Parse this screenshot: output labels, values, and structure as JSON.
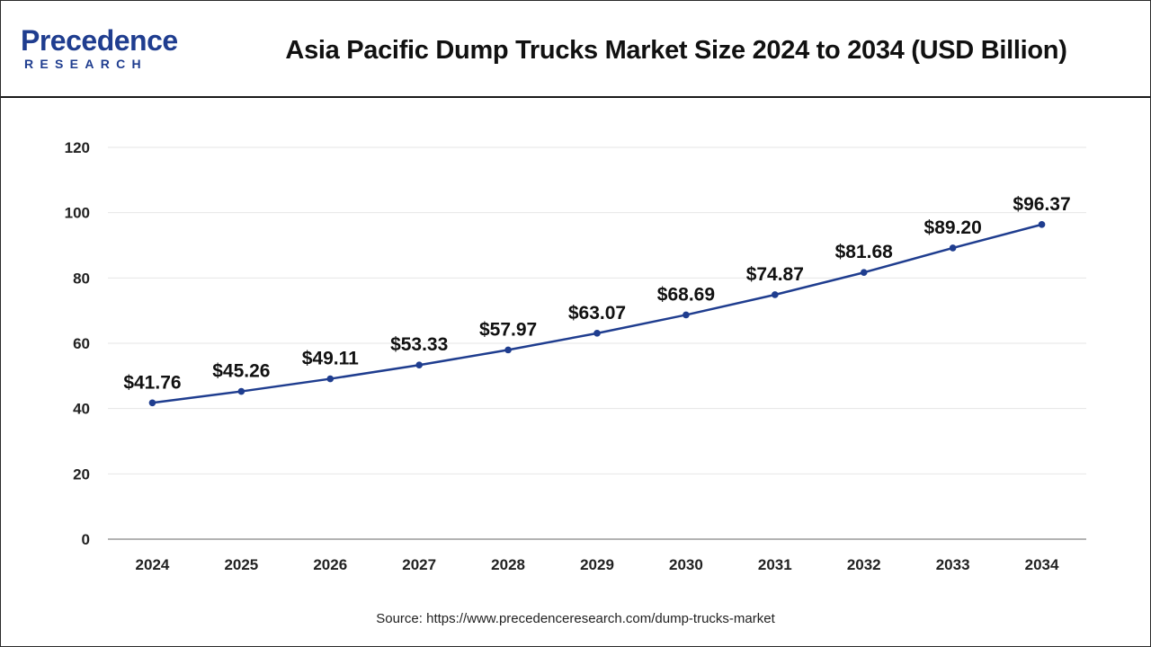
{
  "header": {
    "logo_main": "Precedence",
    "logo_sub": "RESEARCH"
  },
  "source": {
    "label": "Source:",
    "url": "https://www.precedenceresearch.com/dump-trucks-market"
  },
  "colors": {
    "line": "#1f3d8f",
    "grid": "#e6e6e6",
    "axis": "#9a9a9a",
    "brand": "#1f3d8f"
  },
  "chart_data": {
    "type": "line",
    "title": "Asia Pacific Dump Trucks Market Size 2024 to 2034 (USD Billion)",
    "xlabel": "",
    "ylabel": "",
    "categories": [
      "2024",
      "2025",
      "2026",
      "2027",
      "2028",
      "2029",
      "2030",
      "2031",
      "2032",
      "2033",
      "2034"
    ],
    "series": [
      {
        "values": [
          41.76,
          45.26,
          49.11,
          53.33,
          57.97,
          63.07,
          68.69,
          74.87,
          81.68,
          89.2,
          96.37
        ],
        "labels": [
          "$41.76",
          "$45.26",
          "$49.11",
          "$53.33",
          "$57.97",
          "$63.07",
          "$68.69",
          "$74.87",
          "$81.68",
          "$89.20",
          "$96.37"
        ]
      }
    ],
    "ylim": [
      0,
      120
    ],
    "yticks": [
      0,
      20,
      40,
      60,
      80,
      100,
      120
    ],
    "grid": true,
    "legend": "none"
  }
}
